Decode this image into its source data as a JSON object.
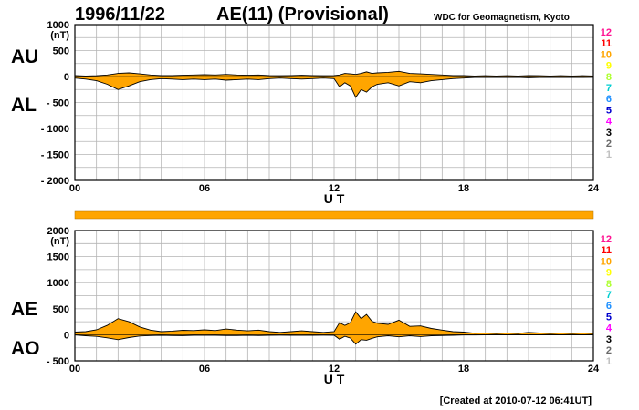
{
  "header": {
    "date": "1996/11/22",
    "title": "AE(11) (Provisional)",
    "source": "WDC for Geomagnetism, Kyoto"
  },
  "footer": {
    "created": "[Created at 2010-07-12 06:41UT]"
  },
  "level_scale": {
    "labels": [
      "12",
      "11",
      "10",
      "9",
      "8",
      "7",
      "6",
      "5",
      "4",
      "3",
      "2",
      "1"
    ],
    "colors": [
      "#ff1493",
      "#ff0000",
      "#ffa500",
      "#ffff00",
      "#adff2f",
      "#00ced1",
      "#1e90ff",
      "#0000cd",
      "#ff00ff",
      "#000000",
      "#696969",
      "#c0c0c0"
    ]
  },
  "coverage_bar": {
    "color": "#ffa500",
    "fraction": 1.0
  },
  "colors": {
    "fill": "#ffa500",
    "line": "#000000",
    "grid": "#b4b4b4"
  },
  "chart_data": [
    {
      "type": "area",
      "panel": "AU/AL",
      "upper_label": "AU",
      "lower_label": "AL",
      "ylabel": "(nT)",
      "xlabel": "U T",
      "ylim": [
        -2000,
        1000
      ],
      "yticks": [
        1000,
        500,
        0,
        -500,
        -1000,
        -1500,
        -2000
      ],
      "ytick_labels": [
        "1000",
        "500",
        "0",
        "- 500",
        "- 1000",
        "- 1500",
        "- 2000"
      ],
      "xlim": [
        0,
        24
      ],
      "xticks": [
        0,
        6,
        12,
        18,
        24
      ],
      "xtick_labels": [
        "00",
        "06",
        "12",
        "18",
        "24"
      ],
      "x_grid_step": 1,
      "y_grid_step": 250,
      "series": [
        {
          "name": "AU",
          "x": [
            0,
            0.5,
            1,
            1.5,
            2,
            2.5,
            3,
            3.5,
            4,
            4.5,
            5,
            5.5,
            6,
            6.5,
            7,
            7.5,
            8,
            8.5,
            9,
            9.5,
            10,
            10.5,
            11,
            11.5,
            12,
            12.25,
            12.5,
            12.75,
            13,
            13.25,
            13.5,
            13.75,
            14,
            14.5,
            15,
            15.5,
            16,
            16.5,
            17,
            17.5,
            18,
            18.5,
            19,
            19.5,
            20,
            20.5,
            21,
            21.5,
            22,
            22.5,
            23,
            23.5,
            24
          ],
          "y": [
            20,
            10,
            15,
            30,
            60,
            70,
            50,
            30,
            20,
            20,
            25,
            30,
            35,
            30,
            40,
            30,
            25,
            30,
            20,
            15,
            20,
            25,
            20,
            15,
            20,
            30,
            60,
            50,
            40,
            60,
            90,
            60,
            70,
            80,
            100,
            60,
            50,
            40,
            30,
            20,
            20,
            10,
            15,
            10,
            15,
            10,
            20,
            15,
            10,
            15,
            10,
            15,
            10
          ]
        },
        {
          "name": "AL",
          "x": [
            0,
            0.5,
            1,
            1.5,
            2,
            2.5,
            3,
            3.5,
            4,
            4.5,
            5,
            5.5,
            6,
            6.5,
            7,
            7.5,
            8,
            8.5,
            9,
            9.5,
            10,
            10.5,
            11,
            11.5,
            12,
            12.25,
            12.5,
            12.75,
            13,
            13.25,
            13.5,
            13.75,
            14,
            14.5,
            15,
            15.5,
            16,
            16.5,
            17,
            17.5,
            18,
            18.5,
            19,
            19.5,
            20,
            20.5,
            21,
            21.5,
            22,
            22.5,
            23,
            23.5,
            24
          ],
          "y": [
            -30,
            -50,
            -80,
            -150,
            -250,
            -180,
            -100,
            -60,
            -40,
            -50,
            -60,
            -50,
            -60,
            -50,
            -70,
            -60,
            -50,
            -60,
            -40,
            -30,
            -40,
            -50,
            -40,
            -30,
            -40,
            -200,
            -120,
            -180,
            -400,
            -250,
            -300,
            -200,
            -150,
            -120,
            -180,
            -100,
            -120,
            -80,
            -60,
            -40,
            -30,
            -20,
            -20,
            -15,
            -20,
            -15,
            -25,
            -20,
            -15,
            -20,
            -15,
            -20,
            -15
          ]
        }
      ]
    },
    {
      "type": "area",
      "panel": "AE/AO",
      "upper_label": "AE",
      "lower_label": "AO",
      "ylabel": "(nT)",
      "xlabel": "U T",
      "ylim": [
        -500,
        2000
      ],
      "yticks": [
        2000,
        1500,
        1000,
        500,
        0,
        -500
      ],
      "ytick_labels": [
        "2000",
        "1500",
        "1000",
        "500",
        "0",
        "- 500"
      ],
      "xlim": [
        0,
        24
      ],
      "xticks": [
        0,
        6,
        12,
        18,
        24
      ],
      "xtick_labels": [
        "00",
        "06",
        "12",
        "18",
        "24"
      ],
      "x_grid_step": 1,
      "y_grid_step": 250,
      "series": [
        {
          "name": "AE",
          "x": [
            0,
            0.5,
            1,
            1.5,
            2,
            2.5,
            3,
            3.5,
            4,
            4.5,
            5,
            5.5,
            6,
            6.5,
            7,
            7.5,
            8,
            8.5,
            9,
            9.5,
            10,
            10.5,
            11,
            11.5,
            12,
            12.25,
            12.5,
            12.75,
            13,
            13.25,
            13.5,
            13.75,
            14,
            14.5,
            15,
            15.5,
            16,
            16.5,
            17,
            17.5,
            18,
            18.5,
            19,
            19.5,
            20,
            20.5,
            21,
            21.5,
            22,
            22.5,
            23,
            23.5,
            24
          ],
          "y": [
            50,
            60,
            95,
            180,
            310,
            250,
            150,
            90,
            60,
            70,
            85,
            80,
            95,
            80,
            110,
            90,
            75,
            90,
            60,
            45,
            60,
            75,
            60,
            45,
            60,
            230,
            180,
            230,
            440,
            310,
            390,
            260,
            220,
            200,
            280,
            160,
            170,
            120,
            90,
            60,
            50,
            30,
            35,
            25,
            35,
            25,
            45,
            35,
            25,
            35,
            25,
            35,
            25
          ]
        },
        {
          "name": "AO",
          "x": [
            0,
            0.5,
            1,
            1.5,
            2,
            2.5,
            3,
            3.5,
            4,
            4.5,
            5,
            5.5,
            6,
            6.5,
            7,
            7.5,
            8,
            8.5,
            9,
            9.5,
            10,
            10.5,
            11,
            11.5,
            12,
            12.25,
            12.5,
            12.75,
            13,
            13.25,
            13.5,
            13.75,
            14,
            14.5,
            15,
            15.5,
            16,
            16.5,
            17,
            17.5,
            18,
            18.5,
            19,
            19.5,
            20,
            20.5,
            21,
            21.5,
            22,
            22.5,
            23,
            23.5,
            24
          ],
          "y": [
            -5,
            -20,
            -32,
            -60,
            -95,
            -55,
            -25,
            -15,
            -10,
            -15,
            -18,
            -10,
            -12,
            -10,
            -15,
            -15,
            -12,
            -15,
            -10,
            -8,
            -10,
            -12,
            -10,
            -8,
            -10,
            -85,
            -30,
            -65,
            -180,
            -95,
            -105,
            -70,
            -40,
            -20,
            -40,
            -20,
            -35,
            -20,
            -15,
            -10,
            -5,
            -5,
            -3,
            -3,
            -3,
            -3,
            -3,
            -3,
            -3,
            -3,
            -3,
            -3,
            -3
          ]
        }
      ]
    }
  ]
}
